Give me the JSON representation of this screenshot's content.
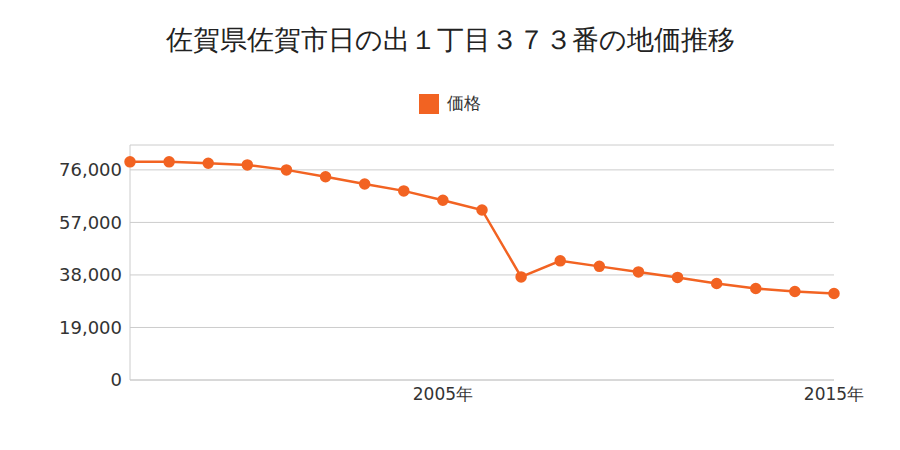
{
  "chart_data": {
    "type": "line",
    "title": "佐賀県佐賀市日の出１丁目３７３番の地価推移",
    "categories": [
      null,
      null,
      null,
      null,
      null,
      null,
      null,
      null,
      "2005年",
      null,
      null,
      null,
      null,
      null,
      null,
      null,
      null,
      null,
      "2015年"
    ],
    "series": [
      {
        "name": "価格",
        "color": "#f26322",
        "marker": "circle",
        "values": [
          78900,
          78900,
          78400,
          77800,
          76000,
          73500,
          70900,
          68400,
          65000,
          61500,
          37300,
          43100,
          41100,
          39100,
          37100,
          34900,
          33100,
          32000,
          31300
        ]
      }
    ],
    "ylim": [
      0,
      85000
    ],
    "yticks": [
      0,
      {
        "value": 19000,
        "label": "19,000"
      },
      {
        "value": 38000,
        "label": "38,000"
      },
      {
        "value": 57000,
        "label": "57,000"
      },
      {
        "value": 76000,
        "label": "76,000"
      }
    ],
    "grid": true,
    "legend": "top"
  }
}
